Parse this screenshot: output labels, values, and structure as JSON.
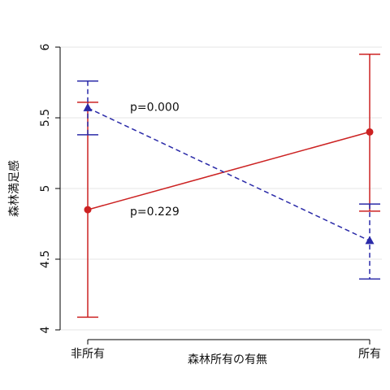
{
  "chart_data": {
    "type": "line",
    "categories": [
      "非所有",
      "所有"
    ],
    "xlabel": "森林所有の有無",
    "ylabel": "森林満足感",
    "ylim": [
      4,
      6
    ],
    "yticks": [
      4,
      4.5,
      5,
      5.5,
      6
    ],
    "ytick_labels": [
      "4",
      "4.5",
      "5",
      "5.5",
      "6"
    ],
    "grid": true,
    "series": [
      {
        "marker": "circle",
        "line_style": "solid",
        "color": "#cc2222",
        "values": [
          4.85,
          5.4
        ],
        "ci_low": [
          4.09,
          4.84
        ],
        "ci_high": [
          5.61,
          5.95
        ]
      },
      {
        "marker": "triangle",
        "line_style": "dashed",
        "color": "#2a2aa8",
        "values": [
          5.57,
          4.63
        ],
        "ci_low": [
          5.38,
          4.36
        ],
        "ci_high": [
          5.76,
          4.89
        ]
      }
    ],
    "annotations": [
      {
        "text": "p=0.000",
        "x": 0.15,
        "y": 5.55
      },
      {
        "text": "p=0.229",
        "x": 0.15,
        "y": 4.81
      }
    ]
  }
}
